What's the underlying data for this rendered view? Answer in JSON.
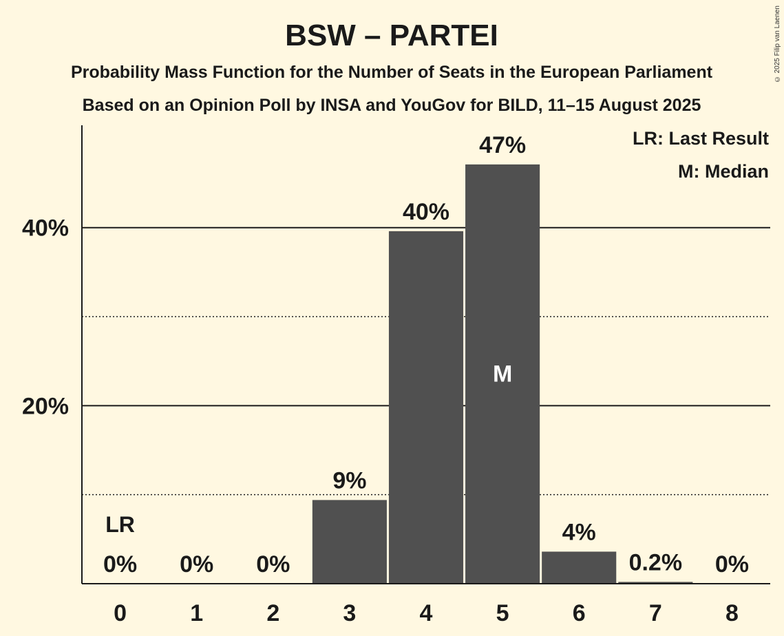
{
  "chart_data": {
    "type": "bar",
    "title": "BSW – PARTEI",
    "subtitle": [
      "Probability Mass Function for the Number of Seats in the European Parliament",
      "Based on an Opinion Poll by INSA and YouGov for BILD, 11–15 August 2025"
    ],
    "categories": [
      "0",
      "1",
      "2",
      "3",
      "4",
      "5",
      "6",
      "7",
      "8"
    ],
    "values": [
      0,
      0,
      0,
      9.4,
      39.6,
      47.1,
      3.6,
      0.2,
      0
    ],
    "data_labels": [
      "0%",
      "0%",
      "0%",
      "9%",
      "40%",
      "47%",
      "4%",
      "0.2%",
      "0%"
    ],
    "ylim": [
      0,
      51.5
    ],
    "y_major_ticks": [
      {
        "value": 20,
        "label": "20%"
      },
      {
        "value": 40,
        "label": "40%"
      }
    ],
    "y_minor_gridlines": [
      10,
      30
    ],
    "last_result_index": 0,
    "last_result_marker": "LR",
    "median_index": 5,
    "median_marker": "M",
    "legend": [
      "LR: Last Result",
      "M: Median"
    ],
    "legend_position": "top-right",
    "grid": true,
    "bar_color": "#505050",
    "background_color": "#fff8e1"
  },
  "copyright": "© 2025 Filip van Laenen"
}
